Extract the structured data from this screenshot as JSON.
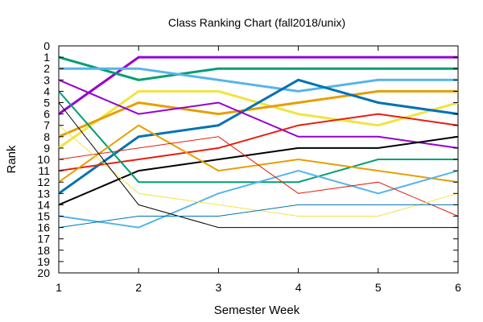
{
  "chart_data": {
    "type": "line",
    "title": "Class Ranking Chart (fall2018/unix)",
    "xlabel": "Semester Week",
    "ylabel": "Rank",
    "x": [
      1,
      2,
      3,
      4,
      5,
      6
    ],
    "xlim": [
      1,
      6
    ],
    "ylim": [
      0,
      20
    ],
    "y_inverted": true,
    "x_ticks": [
      "1",
      "2",
      "3",
      "4",
      "5",
      "6"
    ],
    "y_ticks": [
      "0",
      "1",
      "2",
      "3",
      "4",
      "5",
      "6",
      "7",
      "8",
      "9",
      "10",
      "11",
      "12",
      "13",
      "14",
      "15",
      "16",
      "17",
      "18",
      "19",
      "20"
    ],
    "grid": false,
    "legend": "none",
    "series": [
      {
        "color": "#9400d3",
        "width": 3,
        "values": [
          6,
          1,
          1,
          1,
          1,
          1
        ]
      },
      {
        "color": "#009e73",
        "width": 3,
        "values": [
          1,
          3,
          2,
          2,
          2,
          2
        ]
      },
      {
        "color": "#56b4e9",
        "width": 3,
        "values": [
          2,
          2,
          3,
          4,
          3,
          3
        ]
      },
      {
        "color": "#f0e442",
        "width": 3,
        "values": [
          9,
          4,
          4,
          6,
          7,
          5
        ]
      },
      {
        "color": "#e69f00",
        "width": 3,
        "values": [
          8,
          5,
          6,
          5,
          4,
          4
        ]
      },
      {
        "color": "#0072b2",
        "width": 3,
        "values": [
          13,
          8,
          7,
          3,
          5,
          6
        ]
      },
      {
        "color": "#9400d3",
        "width": 2,
        "values": [
          3,
          6,
          5,
          8,
          8,
          9
        ]
      },
      {
        "color": "#e51e10",
        "width": 2,
        "values": [
          11,
          10,
          9,
          7,
          6,
          7
        ]
      },
      {
        "color": "#000000",
        "width": 2,
        "values": [
          14,
          11,
          10,
          9,
          9,
          8
        ]
      },
      {
        "color": "#009e73",
        "width": 2,
        "values": [
          4,
          12,
          12,
          12,
          10,
          10
        ]
      },
      {
        "color": "#e69f00",
        "width": 2,
        "values": [
          12,
          7,
          11,
          10,
          11,
          12
        ]
      },
      {
        "color": "#56b4e9",
        "width": 2,
        "values": [
          15,
          16,
          13,
          11,
          13,
          11
        ]
      },
      {
        "color": "#e51e10",
        "width": 1,
        "values": [
          10,
          9,
          8,
          13,
          12,
          15
        ]
      },
      {
        "color": "#f0e442",
        "width": 1,
        "values": [
          7,
          13,
          14,
          15,
          15,
          13
        ]
      },
      {
        "color": "#000000",
        "width": 1,
        "values": [
          5,
          14,
          16,
          16,
          16,
          16
        ]
      },
      {
        "color": "#0072b2",
        "width": 1,
        "values": [
          16,
          15,
          15,
          14,
          14,
          14
        ]
      }
    ]
  }
}
